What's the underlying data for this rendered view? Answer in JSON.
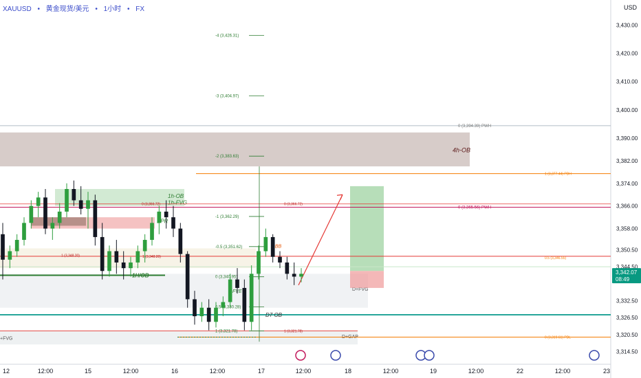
{
  "header": {
    "symbol": "XAUUSD",
    "sep": "•",
    "instrument": "黄金现货/美元",
    "interval": "1小时",
    "market": "FX"
  },
  "axis": {
    "currency_label": "USD",
    "price_ticks": [
      "3,430.00",
      "3,420.00",
      "3,410.00",
      "3,400.00",
      "3,390.00",
      "3,382.00",
      "3,374.00",
      "3,366.00",
      "3,358.00",
      "3,350.50",
      "3,344.50",
      "3,332.50",
      "3,326.50",
      "3,320.50",
      "3,314.50"
    ],
    "time_ticks": [
      "12",
      "12:00",
      "15",
      "12:00",
      "16",
      "12:00",
      "17",
      "12:00",
      "18",
      "12:00",
      "19",
      "12:00",
      "22",
      "12:00",
      "23"
    ],
    "last_price": "3,342.07",
    "countdown": "08:49"
  },
  "colors": {
    "up": "#089981",
    "down": "#131722",
    "bull_body": "#2e9e3e",
    "bear_body": "#131722",
    "fib": "#2e7d32",
    "pwh": "#c2185b",
    "pdh": "#f57c00",
    "ob": "#8d6e63",
    "cyan": "#26a69a",
    "red_line": "#e53935",
    "green_zone": "#a5d6a7",
    "red_zone": "#ef9a9a"
  },
  "annotations": {
    "fib_levels": [
      {
        "label": "-4 (3,426.31)",
        "price": 3426.31
      },
      {
        "label": "-3 (3,404.97)",
        "price": 3404.97
      },
      {
        "label": "-2 (3,383.63)",
        "price": 3383.63
      },
      {
        "label": "-1 (3,362.29)",
        "price": 3362.29
      },
      {
        "label": "-0.5 (3,351.62)",
        "price": 3351.62
      },
      {
        "label": "0 (3,340.95)",
        "price": 3340.95
      },
      {
        "label": "0.5 (3,330.28)",
        "price": 3330.28
      },
      {
        "label": "1 (3,321.78)",
        "price": 3321.78
      }
    ],
    "pwh_label": "0 (3,365.56)",
    "pwh_tag": "PWH",
    "pwh_price": 3365.56,
    "pwl_label": "0 (3,394.39)",
    "pwl_tag": "PWH",
    "pwl_price": 3394.39,
    "pdh_label": "1 (3,377.44)",
    "pdh_tag": "PDH",
    "pdh_price": 3377.44,
    "pdl_label": "0 (3,319.61)",
    "pdl_tag": "PDL",
    "pdl_price": 3319.61,
    "ob4h": "4h-OB",
    "ob1h": "1h-OB",
    "fvg1h": "1h-FVG",
    "bpr": "BPR",
    "ob1h_low": "1H/OB",
    "d_ob": "D7 OB",
    "d_fvg": "D+FVG",
    "d_gap": "D+GAP",
    "hbb": "hBB",
    "fve": "FVE",
    "fvg_left": "+FVG",
    "small_a": "0 (3,366.72)",
    "small_b": "0 (3,366.72)",
    "small_c": "1 (3,348.20)",
    "small_d": "0.5 (3,346.55)",
    "small_e": "1 (3,321.78)",
    "small_f": "1 (3,348.20)"
  },
  "chart_data": {
    "type": "candlestick",
    "title": "XAUUSD • 黄金现货/美元 • 1小时 • FX",
    "ylim": [
      3310,
      3434
    ],
    "candles": [
      [
        3356,
        3360,
        3340,
        3347
      ],
      [
        3347,
        3352,
        3344,
        3350
      ],
      [
        3350,
        3356,
        3348,
        3354
      ],
      [
        3354,
        3362,
        3352,
        3360
      ],
      [
        3360,
        3368,
        3358,
        3366
      ],
      [
        3366,
        3371,
        3362,
        3369
      ],
      [
        3369,
        3372,
        3356,
        3358
      ],
      [
        3358,
        3362,
        3354,
        3360
      ],
      [
        3360,
        3367,
        3358,
        3364
      ],
      [
        3364,
        3374,
        3362,
        3372
      ],
      [
        3372,
        3375,
        3366,
        3368
      ],
      [
        3368,
        3373,
        3363,
        3365
      ],
      [
        3365,
        3371,
        3358,
        3368
      ],
      [
        3368,
        3370,
        3352,
        3355
      ],
      [
        3355,
        3360,
        3340,
        3343
      ],
      [
        3343,
        3352,
        3341,
        3350
      ],
      [
        3350,
        3354,
        3342,
        3346
      ],
      [
        3346,
        3350,
        3340,
        3344
      ],
      [
        3344,
        3348,
        3341,
        3346
      ],
      [
        3346,
        3352,
        3344,
        3350
      ],
      [
        3350,
        3356,
        3346,
        3354
      ],
      [
        3354,
        3362,
        3352,
        3360
      ],
      [
        3360,
        3366,
        3356,
        3364
      ],
      [
        3364,
        3368,
        3358,
        3362
      ],
      [
        3362,
        3366,
        3355,
        3358
      ],
      [
        3358,
        3360,
        3346,
        3349
      ],
      [
        3349,
        3350,
        3330,
        3333
      ],
      [
        3333,
        3336,
        3324,
        3327
      ],
      [
        3327,
        3332,
        3325,
        3330
      ],
      [
        3330,
        3333,
        3322,
        3325
      ],
      [
        3325,
        3332,
        3323,
        3330
      ],
      [
        3330,
        3334,
        3327,
        3332
      ],
      [
        3332,
        3342,
        3330,
        3340
      ],
      [
        3340,
        3344,
        3335,
        3337
      ],
      [
        3337,
        3340,
        3322,
        3325
      ],
      [
        3325,
        3345,
        3322,
        3342
      ],
      [
        3342,
        3352,
        3340,
        3350
      ],
      [
        3350,
        3358,
        3348,
        3355
      ],
      [
        3355,
        3356,
        3346,
        3348
      ],
      [
        3348,
        3350,
        3344,
        3346
      ],
      [
        3346,
        3348,
        3340,
        3342
      ],
      [
        3342,
        3346,
        3338,
        3341
      ],
      [
        3341,
        3344,
        3339,
        3342
      ]
    ],
    "last_price": 3342.07
  }
}
